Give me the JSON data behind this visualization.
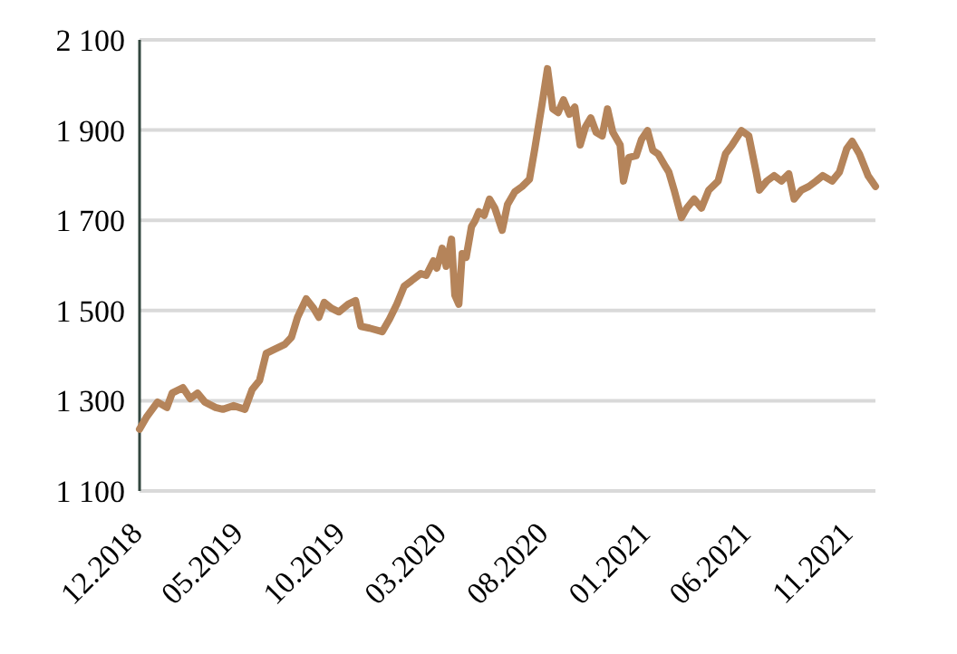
{
  "chart_data": {
    "type": "line",
    "x": [
      "2018-12-01",
      "2018-12-12",
      "2018-12-28",
      "2019-01-11",
      "2019-01-19",
      "2019-02-04",
      "2019-02-15",
      "2019-02-26",
      "2019-03-09",
      "2019-03-25",
      "2019-04-05",
      "2019-04-21",
      "2019-05-08",
      "2019-05-19",
      "2019-05-30",
      "2019-06-09",
      "2019-06-20",
      "2019-07-07",
      "2019-07-17",
      "2019-07-26",
      "2019-08-08",
      "2019-08-19",
      "2019-08-27",
      "2019-09-04",
      "2019-09-15",
      "2019-09-26",
      "2019-10-10",
      "2019-10-21",
      "2019-10-29",
      "2019-11-11",
      "2019-11-30",
      "2019-12-11",
      "2019-12-22",
      "2020-01-02",
      "2020-01-13",
      "2020-01-27",
      "2020-02-04",
      "2020-02-15",
      "2020-02-20",
      "2020-02-28",
      "2020-03-05",
      "2020-03-13",
      "2020-03-18",
      "2020-03-24",
      "2020-03-29",
      "2020-04-04",
      "2020-04-12",
      "2020-04-17",
      "2020-04-23",
      "2020-05-01",
      "2020-05-09",
      "2020-05-17",
      "2020-05-28",
      "2020-06-05",
      "2020-06-16",
      "2020-06-27",
      "2020-07-08",
      "2020-07-16",
      "2020-07-27",
      "2020-08-04",
      "2020-08-12",
      "2020-08-20",
      "2020-08-28",
      "2020-09-06",
      "2020-09-14",
      "2020-09-22",
      "2020-09-30",
      "2020-10-08",
      "2020-10-16",
      "2020-10-25",
      "2020-11-02",
      "2020-11-10",
      "2020-11-21",
      "2020-11-26",
      "2020-12-04",
      "2020-12-15",
      "2020-12-23",
      "2021-01-01",
      "2021-01-09",
      "2021-01-17",
      "2021-01-28",
      "2021-02-02",
      "2021-02-10",
      "2021-02-21",
      "2021-03-01",
      "2021-03-12",
      "2021-03-23",
      "2021-04-03",
      "2021-04-17",
      "2021-04-28",
      "2021-05-08",
      "2021-05-22",
      "2021-06-02",
      "2021-06-13",
      "2021-06-18",
      "2021-06-29",
      "2021-07-10",
      "2021-07-21",
      "2021-08-01",
      "2021-08-09",
      "2021-08-20",
      "2021-08-31",
      "2021-09-11",
      "2021-09-21",
      "2021-10-05",
      "2021-10-16",
      "2021-10-27",
      "2021-11-04",
      "2021-11-15",
      "2021-11-28",
      "2021-12-09"
    ],
    "series": [
      {
        "color": "#b5845a",
        "values": [
          1237,
          1265,
          1297,
          1285,
          1317,
          1329,
          1305,
          1317,
          1297,
          1285,
          1281,
          1289,
          1281,
          1325,
          1345,
          1405,
          1413,
          1425,
          1441,
          1485,
          1526,
          1505,
          1485,
          1518,
          1505,
          1497,
          1514,
          1522,
          1465,
          1461,
          1453,
          1481,
          1514,
          1554,
          1566,
          1582,
          1578,
          1610,
          1594,
          1638,
          1598,
          1658,
          1534,
          1514,
          1626,
          1618,
          1686,
          1698,
          1719,
          1711,
          1747,
          1727,
          1678,
          1735,
          1763,
          1775,
          1791,
          1859,
          1959,
          2036,
          1947,
          1939,
          1967,
          1935,
          1951,
          1867,
          1907,
          1927,
          1895,
          1887,
          1947,
          1895,
          1867,
          1787,
          1839,
          1843,
          1879,
          1899,
          1855,
          1847,
          1819,
          1807,
          1767,
          1706,
          1727,
          1747,
          1727,
          1767,
          1787,
          1847,
          1867,
          1899,
          1887,
          1807,
          1767,
          1787,
          1799,
          1787,
          1803,
          1747,
          1767,
          1775,
          1787,
          1799,
          1787,
          1807,
          1859,
          1875,
          1847,
          1799,
          1775
        ]
      }
    ],
    "xlim": [
      "2018-12-01",
      "2021-12-09"
    ],
    "xticks": [
      {
        "value": "2018-12-01",
        "label": "12.2018"
      },
      {
        "value": "2019-05-01",
        "label": "05.2019"
      },
      {
        "value": "2019-10-01",
        "label": "10.2019"
      },
      {
        "value": "2020-03-01",
        "label": "03.2020"
      },
      {
        "value": "2020-08-01",
        "label": "08.2020"
      },
      {
        "value": "2021-01-01",
        "label": "01.2021"
      },
      {
        "value": "2021-06-01",
        "label": "06.2021"
      },
      {
        "value": "2021-11-01",
        "label": "11.2021"
      }
    ],
    "ylim": [
      1100,
      2100
    ],
    "yticks": [
      {
        "value": 1100,
        "label": "1 100"
      },
      {
        "value": 1300,
        "label": "1 300"
      },
      {
        "value": 1500,
        "label": "1 500"
      },
      {
        "value": 1700,
        "label": "1 700"
      },
      {
        "value": 1900,
        "label": "1 900"
      },
      {
        "value": 2100,
        "label": "2 100"
      }
    ],
    "grid": "y",
    "marker": "none",
    "line_style": "solid"
  }
}
